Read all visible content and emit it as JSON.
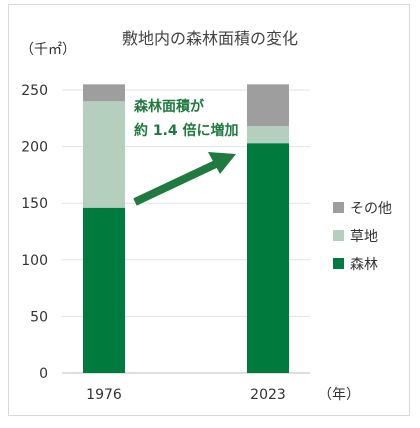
{
  "chart_data": {
    "type": "bar",
    "stacked": true,
    "title": "敷地内の森林面積の変化",
    "ylabel": "（千㎡）",
    "xlabel": "（年）",
    "categories": [
      "1976",
      "2023"
    ],
    "ylim": [
      0,
      250
    ],
    "yticks": [
      "0",
      "50",
      "100",
      "150",
      "200",
      "250"
    ],
    "series": [
      {
        "name": "森林",
        "color": "#007a3d",
        "values": [
          146,
          203
        ]
      },
      {
        "name": "草地",
        "color": "#b5cfbf",
        "values": [
          94,
          15
        ]
      },
      {
        "name": "その他",
        "color": "#9e9e9e",
        "values": [
          15,
          37
        ]
      }
    ],
    "legend_placement": "right",
    "grid": true,
    "annotation": {
      "line1": "森林面積が",
      "line2": "約 1.4 倍に増加",
      "arrow_color": "#1e7a3e"
    }
  }
}
